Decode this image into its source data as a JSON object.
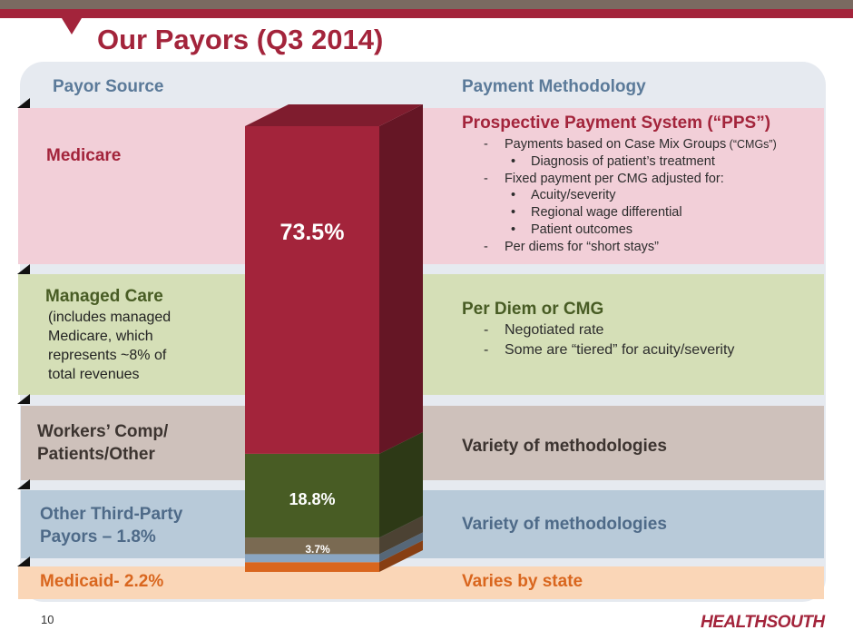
{
  "title": "Our Payors (Q3 2014)",
  "headers": {
    "left": "Payor Source",
    "right": "Payment Methodology"
  },
  "rows": {
    "medicare": {
      "label": "Medicare",
      "method": "Prospective Payment System (“PPS”)",
      "items": [
        {
          "type": "dash",
          "text": "Payments based on Case Mix Groups",
          "small": " (“CMGs”)"
        },
        {
          "type": "bullet",
          "text": "Diagnosis of patient’s treatment"
        },
        {
          "type": "dash",
          "text": "Fixed payment per CMG adjusted for:"
        },
        {
          "type": "bullet",
          "text": "Acuity/severity"
        },
        {
          "type": "bullet",
          "text": "Regional wage differential"
        },
        {
          "type": "bullet",
          "text": "Patient outcomes"
        },
        {
          "type": "dash",
          "text": "Per diems for “short stays”"
        }
      ]
    },
    "managed_care": {
      "label": "Managed Care",
      "note": [
        "(includes managed",
        "Medicare, which",
        "represents ~8% of",
        "total revenues"
      ],
      "method": "Per Diem or CMG",
      "items": [
        {
          "type": "dash",
          "text": "Negotiated rate"
        },
        {
          "type": "dash",
          "text": "Some are “tiered” for acuity/severity"
        }
      ]
    },
    "workers_comp": {
      "label_lines": [
        "Workers’ Comp/",
        "Patients/Other"
      ],
      "method": "Variety of methodologies"
    },
    "other_third_party": {
      "label_lines": [
        "Other Third-Party",
        "Payors – 1.8%"
      ],
      "method": "Variety of methodologies"
    },
    "medicaid": {
      "label": "Medicaid- 2.2%",
      "method": "Varies by state"
    }
  },
  "chart_data": {
    "type": "bar",
    "stacked": true,
    "categories": [
      "Q3 2014"
    ],
    "series": [
      {
        "name": "Medicaid",
        "values": [
          2.2
        ],
        "color": "#d9661e"
      },
      {
        "name": "Other Third-Party Payors",
        "values": [
          1.8
        ],
        "color": "#8aa6c2"
      },
      {
        "name": "Workers’ Comp/Patients/Other",
        "values": [
          3.7
        ],
        "color": "#7a6a52"
      },
      {
        "name": "Managed Care",
        "values": [
          18.8
        ],
        "color": "#485c24"
      },
      {
        "name": "Medicare",
        "values": [
          73.5
        ],
        "color": "#a3243b"
      }
    ],
    "labels": {
      "medicare": "73.5%",
      "managed_care": "18.8%",
      "workers_comp": "3.7%"
    },
    "ylim": [
      0,
      100
    ]
  },
  "footer": {
    "page": "10",
    "logo": "HEALTHSOUTH"
  }
}
